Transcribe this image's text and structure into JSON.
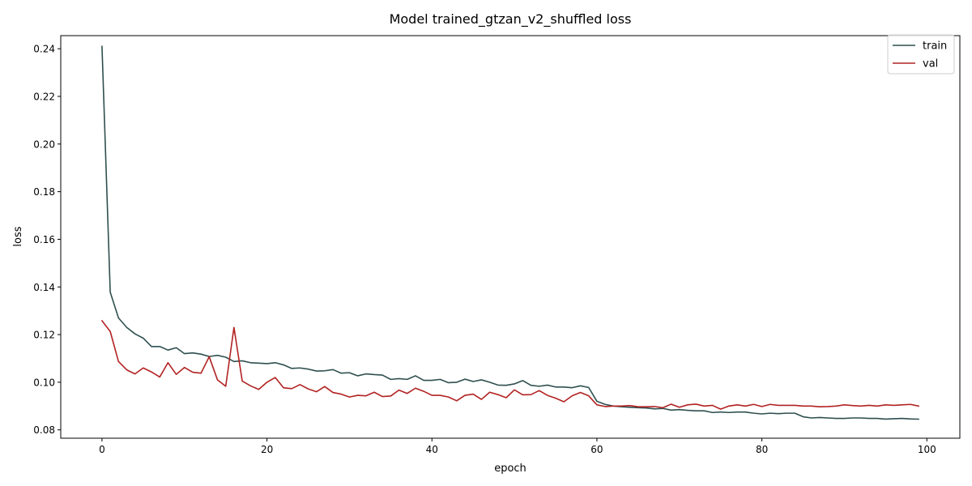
{
  "chart_data": {
    "type": "line",
    "title": "Model trained_gtzan_v2_shuffled loss",
    "xlabel": "epoch",
    "ylabel": "loss",
    "xlim": [
      -5,
      104
    ],
    "ylim": [
      0.0765,
      0.2455
    ],
    "xticks": [
      0,
      20,
      40,
      60,
      80,
      100
    ],
    "yticks": [
      0.08,
      0.1,
      0.12,
      0.14,
      0.16,
      0.18,
      0.2,
      0.22,
      0.24
    ],
    "ytick_labels": [
      "0.08",
      "0.10",
      "0.12",
      "0.14",
      "0.16",
      "0.18",
      "0.20",
      "0.22",
      "0.24"
    ],
    "xtick_labels": [
      "0",
      "20",
      "40",
      "60",
      "80",
      "100"
    ],
    "grid": false,
    "legend": "top-right",
    "series": [
      {
        "name": "train",
        "color": "#2f4f4f",
        "values": [
          0.241,
          0.1378,
          0.127,
          0.123,
          0.1203,
          0.1185,
          0.115,
          0.115,
          0.1135,
          0.1145,
          0.112,
          0.1123,
          0.1118,
          0.1108,
          0.1113,
          0.1105,
          0.1087,
          0.109,
          0.1082,
          0.108,
          0.1078,
          0.1082,
          0.1073,
          0.1058,
          0.106,
          0.1055,
          0.1047,
          0.1048,
          0.1053,
          0.1038,
          0.104,
          0.1027,
          0.1035,
          0.1032,
          0.103,
          0.1012,
          0.1015,
          0.1012,
          0.1027,
          0.1008,
          0.1008,
          0.1012,
          0.0998,
          0.1,
          0.1013,
          0.1003,
          0.101,
          0.1,
          0.0988,
          0.0987,
          0.0993,
          0.1007,
          0.0987,
          0.0983,
          0.0988,
          0.098,
          0.098,
          0.0977,
          0.0985,
          0.0978,
          0.092,
          0.0907,
          0.09,
          0.0897,
          0.0895,
          0.0893,
          0.0892,
          0.0888,
          0.089,
          0.0883,
          0.0885,
          0.0882,
          0.088,
          0.088,
          0.0873,
          0.0875,
          0.0873,
          0.0875,
          0.0875,
          0.087,
          0.0867,
          0.087,
          0.0868,
          0.087,
          0.087,
          0.0855,
          0.085,
          0.0852,
          0.085,
          0.0848,
          0.0848,
          0.085,
          0.085,
          0.0848,
          0.0848,
          0.0845,
          0.0847,
          0.0848,
          0.0846,
          0.0845
        ]
      },
      {
        "name": "val",
        "color": "#b22222",
        "values": [
          0.1258,
          0.1213,
          0.1087,
          0.1052,
          0.1035,
          0.106,
          0.1043,
          0.1022,
          0.1082,
          0.1033,
          0.1062,
          0.1042,
          0.1038,
          0.1107,
          0.101,
          0.0983,
          0.123,
          0.1005,
          0.0985,
          0.097,
          0.1,
          0.102,
          0.0977,
          0.0973,
          0.099,
          0.0972,
          0.096,
          0.0982,
          0.0957,
          0.095,
          0.0938,
          0.0945,
          0.0943,
          0.0958,
          0.094,
          0.0942,
          0.0967,
          0.0953,
          0.0975,
          0.0962,
          0.0945,
          0.0945,
          0.0938,
          0.0922,
          0.0945,
          0.095,
          0.0928,
          0.0958,
          0.0948,
          0.0935,
          0.0968,
          0.0947,
          0.0948,
          0.0965,
          0.0945,
          0.0933,
          0.0918,
          0.0943,
          0.0957,
          0.0943,
          0.0905,
          0.0898,
          0.09,
          0.09,
          0.0902,
          0.0897,
          0.0897,
          0.0898,
          0.0893,
          0.0908,
          0.0895,
          0.0905,
          0.0908,
          0.09,
          0.0903,
          0.0887,
          0.09,
          0.0905,
          0.09,
          0.0907,
          0.0898,
          0.0907,
          0.0903,
          0.0903,
          0.0903,
          0.09,
          0.09,
          0.0897,
          0.0898,
          0.09,
          0.0905,
          0.0902,
          0.09,
          0.0903,
          0.09,
          0.0905,
          0.0903,
          0.0905,
          0.0907,
          0.09
        ]
      }
    ]
  }
}
